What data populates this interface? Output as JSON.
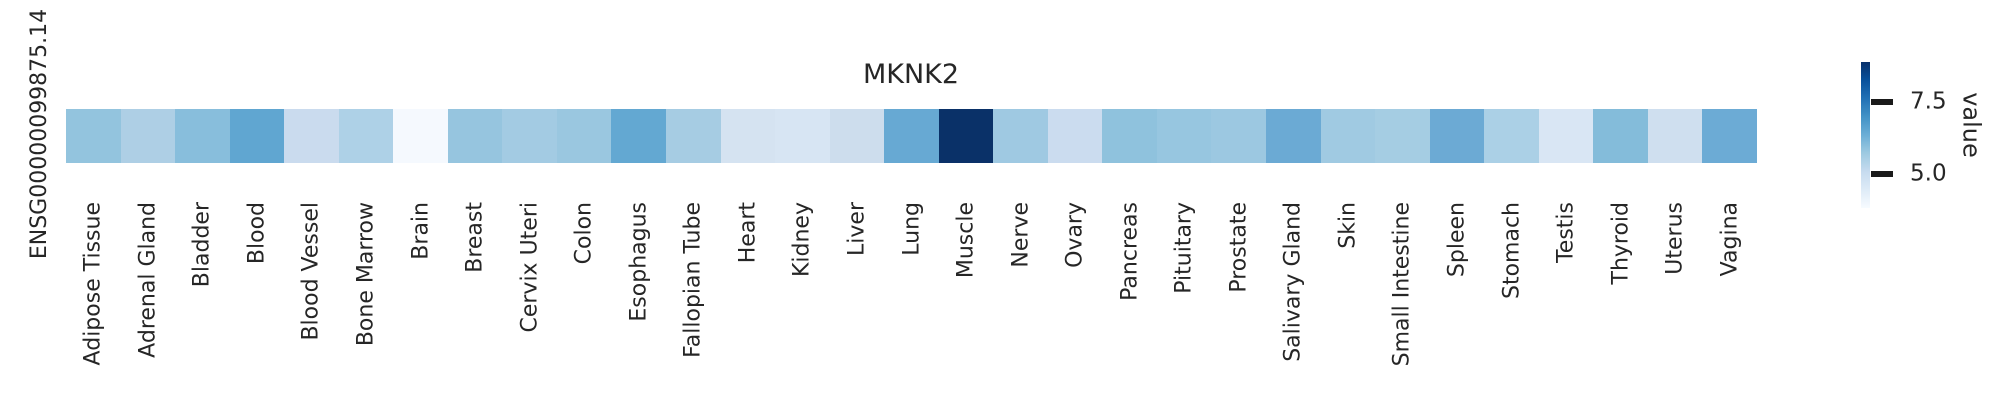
{
  "figure": {
    "title": "MKNK2",
    "row_label": "ENSG00000099875.14",
    "background_color": "#ffffff",
    "text_color": "#262626"
  },
  "colorbar": {
    "label": "value",
    "ticks": [
      {
        "label": "7.5",
        "value": 7.5
      },
      {
        "label": "5.0",
        "value": 5.0
      }
    ],
    "vmin": 3.8,
    "vmax": 8.9,
    "colormap": "Blues",
    "gradient_top_to_bottom": [
      "#08306b",
      "#08519c",
      "#2171b5",
      "#4292c6",
      "#6baed6",
      "#9ecae1",
      "#c6dbef",
      "#deebf7",
      "#f7fbff"
    ]
  },
  "chart_data": {
    "type": "heatmap",
    "title": "MKNK2",
    "rows": [
      "ENSG00000099875.14"
    ],
    "categories": [
      "Adipose Tissue",
      "Adrenal Gland",
      "Bladder",
      "Blood",
      "Blood Vessel",
      "Bone Marrow",
      "Brain",
      "Breast",
      "Cervix Uteri",
      "Colon",
      "Esophagus",
      "Fallopian Tube",
      "Heart",
      "Kidney",
      "Liver",
      "Lung",
      "Muscle",
      "Nerve",
      "Ovary",
      "Pancreas",
      "Pituitary",
      "Prostate",
      "Salivary Gland",
      "Skin",
      "Small Intestine",
      "Spleen",
      "Stomach",
      "Testis",
      "Thyroid",
      "Uterus",
      "Vagina"
    ],
    "values": [
      [
        5.85,
        5.46,
        5.99,
        6.52,
        4.97,
        5.43,
        3.85,
        5.81,
        5.63,
        5.76,
        6.47,
        5.59,
        4.68,
        4.62,
        4.89,
        6.41,
        8.9,
        5.7,
        4.94,
        5.9,
        5.8,
        5.74,
        6.4,
        5.68,
        5.6,
        6.38,
        5.5,
        4.57,
        6.04,
        4.84,
        6.37
      ]
    ],
    "cell_colors": [
      [
        "#93c4de",
        "#aecfe5",
        "#88bedc",
        "#60a6d1",
        "#cadbee",
        "#aed1e7",
        "#f5f9fe",
        "#96c5df",
        "#a3cbe3",
        "#9ac7e0",
        "#63a8d2",
        "#a6cce3",
        "#d5e3f1",
        "#d7e5f3",
        "#cddded",
        "#67a9d3",
        "#0a3168",
        "#9fc9e2",
        "#cbdcef",
        "#8fc2dd",
        "#97c6e0",
        "#9cc8e1",
        "#6baad4",
        "#a0cae2",
        "#a5cde3",
        "#6caad4",
        "#abd0e6",
        "#d9e6f4",
        "#84bcda",
        "#cfdfef",
        "#6cabd5"
      ]
    ],
    "colormap": "Blues",
    "vmin": 3.8,
    "vmax": 8.9,
    "colorbar_label": "value",
    "colorbar_ticks": [
      5.0,
      7.5
    ],
    "legend_position": "right",
    "grid": false
  }
}
